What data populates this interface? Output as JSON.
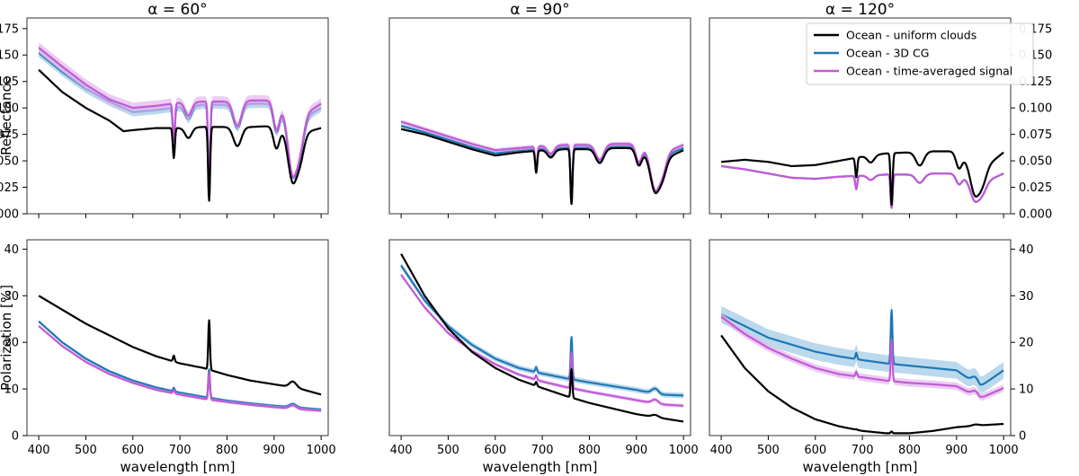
{
  "chart_data": {
    "type": "line",
    "xlabel": "wavelength [nm]",
    "xlim": [
      375,
      1015
    ],
    "xticks": [
      400,
      500,
      600,
      700,
      800,
      900,
      1000
    ],
    "titles": [
      "α = 60°",
      "α = 90°",
      "α = 120°"
    ],
    "rows": [
      {
        "ylabel": "Reflectance",
        "ylim": [
          0,
          0.185
        ],
        "yticks": [
          0.0,
          0.025,
          0.05,
          0.075,
          0.1,
          0.125,
          0.15,
          0.175
        ],
        "tick_decimals": 3
      },
      {
        "ylabel": "Polarization [%]",
        "ylim": [
          0,
          42
        ],
        "yticks": [
          0,
          10,
          20,
          30,
          40
        ],
        "tick_decimals": 0
      }
    ],
    "legend": {
      "position": "top-right",
      "entries": [
        {
          "name": "Ocean - uniform clouds",
          "color": "#000000"
        },
        {
          "name": "Ocean - 3D CG",
          "color": "#1f77b4"
        },
        {
          "name": "Ocean - time-averaged signal",
          "color": "#c15ad6"
        }
      ]
    },
    "colors": {
      "uniform": "#000000",
      "cg3d": "#1f77b4",
      "cg3d_band": "#9ec9e6",
      "avg": "#c15ad6",
      "avg_band": "#e3b6ee"
    },
    "absorption_features": [
      {
        "center": 687,
        "width": 3,
        "depth": 0.35
      },
      {
        "center": 718,
        "width": 10,
        "depth": 0.12
      },
      {
        "center": 762,
        "width": 3,
        "depth": 0.85
      },
      {
        "center": 822,
        "width": 12,
        "depth": 0.22
      },
      {
        "center": 905,
        "width": 9,
        "depth": 0.25
      },
      {
        "center": 940,
        "width": 14,
        "depth": 0.6
      },
      {
        "center": 955,
        "width": 12,
        "depth": 0.28
      }
    ],
    "panels": [
      {
        "row": 0,
        "col": 0,
        "series": [
          {
            "key": "uniform",
            "name": "Ocean - uniform clouds",
            "x": [
              400,
              450,
              500,
              550,
              580,
              600,
              650,
              700,
              750,
              800,
              850,
              900,
              950,
              1000
            ],
            "y": [
              0.136,
              0.115,
              0.1,
              0.088,
              0.078,
              0.079,
              0.081,
              0.081,
              0.082,
              0.082,
              0.082,
              0.083,
              0.075,
              0.081
            ],
            "band": 0
          },
          {
            "key": "cg3d",
            "name": "Ocean - 3D CG",
            "x": [
              400,
              450,
              500,
              550,
              600,
              650,
              700,
              750,
              800,
              850,
              900,
              950,
              1000
            ],
            "y": [
              0.152,
              0.134,
              0.118,
              0.106,
              0.096,
              0.098,
              0.101,
              0.103,
              0.103,
              0.104,
              0.104,
              0.087,
              0.1
            ],
            "band": 0.004
          },
          {
            "key": "avg",
            "name": "Ocean - time-averaged signal",
            "x": [
              400,
              450,
              500,
              550,
              600,
              650,
              700,
              750,
              800,
              850,
              900,
              950,
              1000
            ],
            "y": [
              0.157,
              0.139,
              0.122,
              0.108,
              0.1,
              0.102,
              0.105,
              0.106,
              0.106,
              0.107,
              0.107,
              0.09,
              0.104
            ],
            "band": 0.005
          }
        ]
      },
      {
        "row": 0,
        "col": 1,
        "series": [
          {
            "key": "uniform",
            "name": "Ocean - uniform clouds",
            "x": [
              400,
              450,
              500,
              550,
              600,
              650,
              700,
              750,
              800,
              850,
              900,
              950,
              1000
            ],
            "y": [
              0.08,
              0.075,
              0.068,
              0.061,
              0.055,
              0.058,
              0.06,
              0.061,
              0.061,
              0.062,
              0.062,
              0.05,
              0.06
            ],
            "band": 0
          },
          {
            "key": "cg3d",
            "name": "Ocean - 3D CG",
            "x": [
              400,
              450,
              500,
              550,
              600,
              650,
              700,
              750,
              800,
              850,
              900,
              950,
              1000
            ],
            "y": [
              0.083,
              0.077,
              0.07,
              0.063,
              0.057,
              0.06,
              0.062,
              0.063,
              0.063,
              0.064,
              0.064,
              0.054,
              0.062
            ],
            "band": 0.002
          },
          {
            "key": "avg",
            "name": "Ocean - time-averaged signal",
            "x": [
              400,
              450,
              500,
              550,
              600,
              650,
              700,
              750,
              800,
              850,
              900,
              950,
              1000
            ],
            "y": [
              0.087,
              0.08,
              0.073,
              0.066,
              0.06,
              0.062,
              0.064,
              0.065,
              0.065,
              0.066,
              0.066,
              0.056,
              0.065
            ],
            "band": 0.002
          }
        ]
      },
      {
        "row": 0,
        "col": 2,
        "series": [
          {
            "key": "uniform",
            "name": "Ocean - uniform clouds",
            "x": [
              400,
              450,
              500,
              550,
              600,
              650,
              700,
              750,
              800,
              850,
              900,
              950,
              1000
            ],
            "y": [
              0.049,
              0.051,
              0.049,
              0.045,
              0.046,
              0.05,
              0.054,
              0.057,
              0.058,
              0.059,
              0.059,
              0.04,
              0.058
            ],
            "band": 0
          },
          {
            "key": "cg3d",
            "name": "Ocean - 3D CG",
            "x": [
              400,
              450,
              500,
              550,
              600,
              650,
              700,
              750,
              800,
              850,
              900,
              950,
              1000
            ],
            "y": [
              0.045,
              0.042,
              0.038,
              0.034,
              0.033,
              0.035,
              0.036,
              0.037,
              0.037,
              0.038,
              0.038,
              0.028,
              0.038
            ],
            "band": 0.001
          },
          {
            "key": "avg",
            "name": "Ocean - time-averaged signal",
            "x": [
              400,
              450,
              500,
              550,
              600,
              650,
              700,
              750,
              800,
              850,
              900,
              950,
              1000
            ],
            "y": [
              0.045,
              0.042,
              0.038,
              0.034,
              0.033,
              0.035,
              0.036,
              0.037,
              0.037,
              0.038,
              0.038,
              0.028,
              0.038
            ],
            "band": 0.001
          }
        ]
      },
      {
        "row": 1,
        "col": 0,
        "series": [
          {
            "key": "uniform",
            "name": "Ocean - uniform clouds",
            "x": [
              400,
              450,
              500,
              550,
              600,
              650,
              700,
              750,
              800,
              850,
              900,
              950,
              1000
            ],
            "y": [
              30.0,
              27.0,
              24.0,
              21.5,
              19.0,
              17.0,
              15.5,
              14.5,
              13.0,
              11.8,
              11.0,
              10.2,
              8.8
            ],
            "band": 0
          },
          {
            "key": "cg3d",
            "name": "Ocean - 3D CG",
            "x": [
              400,
              450,
              500,
              550,
              600,
              650,
              700,
              750,
              800,
              850,
              900,
              950,
              1000
            ],
            "y": [
              24.5,
              20.0,
              16.5,
              13.8,
              11.8,
              10.3,
              9.2,
              8.3,
              7.5,
              6.9,
              6.4,
              6.0,
              5.6
            ],
            "band": 0.3
          },
          {
            "key": "avg",
            "name": "Ocean - time-averaged signal",
            "x": [
              400,
              450,
              500,
              550,
              600,
              650,
              700,
              750,
              800,
              850,
              900,
              950,
              1000
            ],
            "y": [
              23.5,
              19.2,
              15.8,
              13.2,
              11.3,
              9.8,
              8.8,
              7.9,
              7.2,
              6.6,
              6.1,
              5.7,
              5.3
            ],
            "band": 0.3
          }
        ]
      },
      {
        "row": 1,
        "col": 1,
        "series": [
          {
            "key": "uniform",
            "name": "Ocean - uniform clouds",
            "x": [
              400,
              450,
              500,
              550,
              600,
              650,
              700,
              750,
              800,
              850,
              900,
              950,
              1000
            ],
            "y": [
              39.0,
              30.0,
              23.0,
              18.0,
              14.5,
              12.0,
              10.2,
              8.5,
              7.0,
              5.8,
              4.6,
              3.8,
              3.0
            ],
            "band": 0
          },
          {
            "key": "cg3d",
            "name": "Ocean - 3D CG",
            "x": [
              400,
              450,
              500,
              550,
              600,
              650,
              700,
              750,
              800,
              850,
              900,
              950,
              1000
            ],
            "y": [
              36.5,
              29.0,
              23.5,
              19.5,
              16.5,
              14.5,
              13.3,
              12.3,
              11.4,
              10.6,
              9.8,
              8.8,
              8.6
            ],
            "band": 0.6
          },
          {
            "key": "avg",
            "name": "Ocean - time-averaged signal",
            "x": [
              400,
              450,
              500,
              550,
              600,
              650,
              700,
              750,
              800,
              850,
              900,
              950,
              1000
            ],
            "y": [
              34.5,
              27.5,
              22.0,
              18.2,
              15.3,
              13.1,
              11.6,
              10.4,
              9.4,
              8.5,
              7.6,
              6.7,
              6.4
            ],
            "band": 0.4
          }
        ]
      },
      {
        "row": 1,
        "col": 2,
        "series": [
          {
            "key": "uniform",
            "name": "Ocean - uniform clouds",
            "x": [
              400,
              450,
              500,
              550,
              600,
              650,
              700,
              750,
              800,
              850,
              900,
              950,
              1000
            ],
            "y": [
              21.5,
              14.5,
              9.5,
              6.0,
              3.5,
              2.0,
              1.0,
              0.5,
              0.5,
              1.0,
              1.8,
              2.2,
              2.5
            ],
            "band": 0
          },
          {
            "key": "cg3d",
            "name": "Ocean - 3D CG",
            "x": [
              400,
              450,
              500,
              550,
              600,
              650,
              700,
              750,
              800,
              850,
              900,
              950,
              1000
            ],
            "y": [
              26.0,
              23.5,
              21.0,
              19.5,
              18.0,
              17.0,
              16.2,
              15.5,
              15.0,
              14.5,
              14.0,
              10.5,
              14.0
            ],
            "band": 1.8
          },
          {
            "key": "avg",
            "name": "Ocean - time-averaged signal",
            "x": [
              400,
              450,
              500,
              550,
              600,
              650,
              700,
              750,
              800,
              850,
              900,
              950,
              1000
            ],
            "y": [
              25.5,
              21.8,
              18.8,
              16.5,
              14.5,
              13.2,
              12.5,
              11.8,
              11.3,
              11.0,
              10.6,
              8.0,
              10.2
            ],
            "band": 0.8
          }
        ]
      }
    ]
  }
}
